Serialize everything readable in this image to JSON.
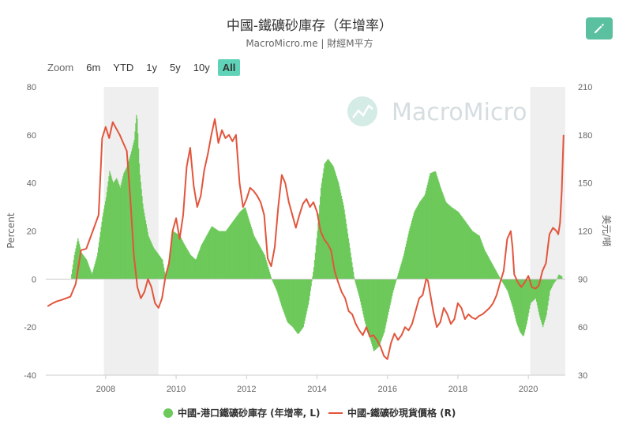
{
  "header": {
    "title": "中國-鐵礦砂庫存（年增率）",
    "subtitle": "MacroMicro.me | 財經M平方",
    "edit_icon": "pencil-icon"
  },
  "toolbar": {
    "zoom_label": "Zoom",
    "ranges": [
      "6m",
      "YTD",
      "1y",
      "5y",
      "10y",
      "All"
    ],
    "selected": "All"
  },
  "watermark": {
    "text": "MacroMicro"
  },
  "chart_data": {
    "type": "bar+line",
    "title": "中國-鐵礦砂庫存（年增率）",
    "y_left": {
      "label": "Percent",
      "min": -40,
      "max": 80,
      "ticks": [
        -40,
        -20,
        0,
        20,
        40,
        60,
        80
      ]
    },
    "y_right": {
      "label": "美元/噸",
      "min": 30,
      "max": 210,
      "ticks": [
        30,
        60,
        90,
        120,
        150,
        180,
        210
      ]
    },
    "x": {
      "min": 2006.3,
      "max": 2021.05,
      "ticks": [
        "2008",
        "2010",
        "2012",
        "2014",
        "2016",
        "2018",
        "2020"
      ],
      "tick_values": [
        2008,
        2010,
        2012,
        2014,
        2016,
        2018,
        2020
      ]
    },
    "shaded_periods": [
      [
        2007.95,
        2009.5
      ],
      [
        2020.05,
        2021.05
      ]
    ],
    "colors": {
      "bars": "#6cc95a",
      "line": "#e2553c",
      "shade": "#efefef"
    },
    "series": [
      {
        "name": "中國-港口鐵礦砂庫存 (年增率, L)",
        "type": "bar",
        "axis": "left",
        "points": [
          [
            2007.0,
            0
          ],
          [
            2007.1,
            10
          ],
          [
            2007.2,
            17
          ],
          [
            2007.3,
            11
          ],
          [
            2007.45,
            8
          ],
          [
            2007.6,
            2
          ],
          [
            2007.75,
            10
          ],
          [
            2007.9,
            26
          ],
          [
            2008.0,
            34
          ],
          [
            2008.1,
            45
          ],
          [
            2008.2,
            40
          ],
          [
            2008.3,
            42
          ],
          [
            2008.4,
            38
          ],
          [
            2008.5,
            44
          ],
          [
            2008.6,
            47
          ],
          [
            2008.7,
            52
          ],
          [
            2008.8,
            58
          ],
          [
            2008.87,
            70
          ],
          [
            2008.95,
            45
          ],
          [
            2009.05,
            30
          ],
          [
            2009.2,
            18
          ],
          [
            2009.35,
            13
          ],
          [
            2009.5,
            10
          ],
          [
            2009.6,
            8
          ],
          [
            2009.7,
            0
          ],
          [
            2009.8,
            10
          ],
          [
            2009.9,
            20
          ],
          [
            2010.1,
            18
          ],
          [
            2010.2,
            15
          ],
          [
            2010.4,
            10
          ],
          [
            2010.55,
            8
          ],
          [
            2010.7,
            14
          ],
          [
            2010.85,
            18
          ],
          [
            2011.0,
            22
          ],
          [
            2011.2,
            20
          ],
          [
            2011.4,
            20
          ],
          [
            2011.6,
            24
          ],
          [
            2011.8,
            28
          ],
          [
            2011.95,
            30
          ],
          [
            2012.05,
            25
          ],
          [
            2012.2,
            18
          ],
          [
            2012.35,
            14
          ],
          [
            2012.5,
            10
          ],
          [
            2012.6,
            5
          ],
          [
            2012.7,
            0
          ],
          [
            2012.85,
            -5
          ],
          [
            2013.0,
            -12
          ],
          [
            2013.15,
            -18
          ],
          [
            2013.3,
            -20
          ],
          [
            2013.45,
            -23
          ],
          [
            2013.6,
            -20
          ],
          [
            2013.75,
            -10
          ],
          [
            2013.9,
            5
          ],
          [
            2014.0,
            20
          ],
          [
            2014.1,
            38
          ],
          [
            2014.2,
            48
          ],
          [
            2014.3,
            50
          ],
          [
            2014.45,
            47
          ],
          [
            2014.6,
            40
          ],
          [
            2014.75,
            30
          ],
          [
            2014.9,
            15
          ],
          [
            2015.05,
            0
          ],
          [
            2015.2,
            -8
          ],
          [
            2015.35,
            -18
          ],
          [
            2015.5,
            -25
          ],
          [
            2015.6,
            -30
          ],
          [
            2015.75,
            -28
          ],
          [
            2015.9,
            -22
          ],
          [
            2016.0,
            -15
          ],
          [
            2016.15,
            -5
          ],
          [
            2016.25,
            0
          ],
          [
            2016.45,
            10
          ],
          [
            2016.6,
            20
          ],
          [
            2016.75,
            28
          ],
          [
            2016.9,
            32
          ],
          [
            2017.05,
            35
          ],
          [
            2017.2,
            44
          ],
          [
            2017.35,
            45
          ],
          [
            2017.5,
            38
          ],
          [
            2017.65,
            32
          ],
          [
            2017.8,
            30
          ],
          [
            2018.0,
            28
          ],
          [
            2018.2,
            24
          ],
          [
            2018.4,
            20
          ],
          [
            2018.6,
            18
          ],
          [
            2018.75,
            12
          ],
          [
            2018.9,
            8
          ],
          [
            2019.05,
            4
          ],
          [
            2019.2,
            0
          ],
          [
            2019.4,
            -5
          ],
          [
            2019.55,
            -12
          ],
          [
            2019.65,
            -18
          ],
          [
            2019.75,
            -22
          ],
          [
            2019.85,
            -24
          ],
          [
            2019.95,
            -18
          ],
          [
            2020.05,
            -10
          ],
          [
            2020.2,
            -8
          ],
          [
            2020.3,
            -15
          ],
          [
            2020.4,
            -20
          ],
          [
            2020.5,
            -15
          ],
          [
            2020.6,
            -5
          ],
          [
            2020.7,
            -2
          ],
          [
            2020.8,
            0
          ],
          [
            2020.85,
            2
          ],
          [
            2020.95,
            1
          ]
        ]
      },
      {
        "name": "中國-鐵礦砂現貨價格 (R)",
        "type": "line",
        "axis": "right",
        "points": [
          [
            2006.35,
            73
          ],
          [
            2006.5,
            75
          ],
          [
            2006.6,
            76
          ],
          [
            2006.75,
            77
          ],
          [
            2007.0,
            79
          ],
          [
            2007.15,
            87
          ],
          [
            2007.3,
            108
          ],
          [
            2007.45,
            109
          ],
          [
            2007.6,
            118
          ],
          [
            2007.8,
            130
          ],
          [
            2007.9,
            178
          ],
          [
            2008.0,
            185
          ],
          [
            2008.1,
            178
          ],
          [
            2008.2,
            188
          ],
          [
            2008.3,
            184
          ],
          [
            2008.4,
            180
          ],
          [
            2008.5,
            175
          ],
          [
            2008.6,
            170
          ],
          [
            2008.7,
            140
          ],
          [
            2008.8,
            105
          ],
          [
            2008.9,
            85
          ],
          [
            2009.0,
            78
          ],
          [
            2009.1,
            82
          ],
          [
            2009.2,
            90
          ],
          [
            2009.3,
            85
          ],
          [
            2009.4,
            75
          ],
          [
            2009.5,
            72
          ],
          [
            2009.6,
            78
          ],
          [
            2009.7,
            92
          ],
          [
            2009.8,
            100
          ],
          [
            2009.9,
            120
          ],
          [
            2010.0,
            128
          ],
          [
            2010.1,
            115
          ],
          [
            2010.2,
            130
          ],
          [
            2010.3,
            160
          ],
          [
            2010.4,
            172
          ],
          [
            2010.5,
            148
          ],
          [
            2010.6,
            135
          ],
          [
            2010.7,
            142
          ],
          [
            2010.8,
            158
          ],
          [
            2010.9,
            168
          ],
          [
            2011.0,
            180
          ],
          [
            2011.1,
            190
          ],
          [
            2011.2,
            175
          ],
          [
            2011.3,
            183
          ],
          [
            2011.4,
            178
          ],
          [
            2011.5,
            180
          ],
          [
            2011.6,
            176
          ],
          [
            2011.7,
            180
          ],
          [
            2011.8,
            150
          ],
          [
            2011.9,
            135
          ],
          [
            2012.0,
            140
          ],
          [
            2012.1,
            147
          ],
          [
            2012.2,
            145
          ],
          [
            2012.3,
            142
          ],
          [
            2012.4,
            138
          ],
          [
            2012.5,
            130
          ],
          [
            2012.6,
            103
          ],
          [
            2012.7,
            98
          ],
          [
            2012.8,
            110
          ],
          [
            2012.9,
            135
          ],
          [
            2013.0,
            155
          ],
          [
            2013.1,
            150
          ],
          [
            2013.2,
            138
          ],
          [
            2013.3,
            130
          ],
          [
            2013.4,
            122
          ],
          [
            2013.5,
            130
          ],
          [
            2013.6,
            137
          ],
          [
            2013.7,
            140
          ],
          [
            2013.8,
            135
          ],
          [
            2013.9,
            138
          ],
          [
            2014.0,
            132
          ],
          [
            2014.1,
            120
          ],
          [
            2014.2,
            115
          ],
          [
            2014.3,
            112
          ],
          [
            2014.4,
            108
          ],
          [
            2014.5,
            95
          ],
          [
            2014.6,
            88
          ],
          [
            2014.7,
            82
          ],
          [
            2014.8,
            78
          ],
          [
            2014.9,
            70
          ],
          [
            2015.0,
            68
          ],
          [
            2015.1,
            62
          ],
          [
            2015.2,
            58
          ],
          [
            2015.3,
            55
          ],
          [
            2015.4,
            60
          ],
          [
            2015.5,
            54
          ],
          [
            2015.6,
            55
          ],
          [
            2015.7,
            52
          ],
          [
            2015.8,
            48
          ],
          [
            2015.9,
            42
          ],
          [
            2016.0,
            40
          ],
          [
            2016.1,
            50
          ],
          [
            2016.2,
            56
          ],
          [
            2016.3,
            52
          ],
          [
            2016.4,
            55
          ],
          [
            2016.5,
            60
          ],
          [
            2016.6,
            58
          ],
          [
            2016.7,
            62
          ],
          [
            2016.8,
            70
          ],
          [
            2016.9,
            78
          ],
          [
            2017.0,
            80
          ],
          [
            2017.1,
            90
          ],
          [
            2017.15,
            89
          ],
          [
            2017.3,
            70
          ],
          [
            2017.4,
            60
          ],
          [
            2017.5,
            63
          ],
          [
            2017.6,
            72
          ],
          [
            2017.7,
            68
          ],
          [
            2017.8,
            62
          ],
          [
            2017.9,
            65
          ],
          [
            2018.0,
            75
          ],
          [
            2018.1,
            72
          ],
          [
            2018.2,
            65
          ],
          [
            2018.3,
            68
          ],
          [
            2018.4,
            66
          ],
          [
            2018.5,
            65
          ],
          [
            2018.6,
            67
          ],
          [
            2018.7,
            68
          ],
          [
            2018.8,
            70
          ],
          [
            2018.9,
            72
          ],
          [
            2019.0,
            75
          ],
          [
            2019.1,
            80
          ],
          [
            2019.2,
            88
          ],
          [
            2019.3,
            95
          ],
          [
            2019.4,
            115
          ],
          [
            2019.5,
            120
          ],
          [
            2019.55,
            110
          ],
          [
            2019.6,
            93
          ],
          [
            2019.7,
            88
          ],
          [
            2019.8,
            85
          ],
          [
            2019.9,
            88
          ],
          [
            2020.0,
            92
          ],
          [
            2020.1,
            85
          ],
          [
            2020.2,
            84
          ],
          [
            2020.3,
            86
          ],
          [
            2020.4,
            95
          ],
          [
            2020.5,
            100
          ],
          [
            2020.6,
            118
          ],
          [
            2020.7,
            122
          ],
          [
            2020.8,
            120
          ],
          [
            2020.85,
            118
          ],
          [
            2020.9,
            125
          ],
          [
            2020.95,
            145
          ],
          [
            2021.0,
            180
          ]
        ]
      }
    ],
    "legend": {
      "position": "bottom"
    }
  }
}
